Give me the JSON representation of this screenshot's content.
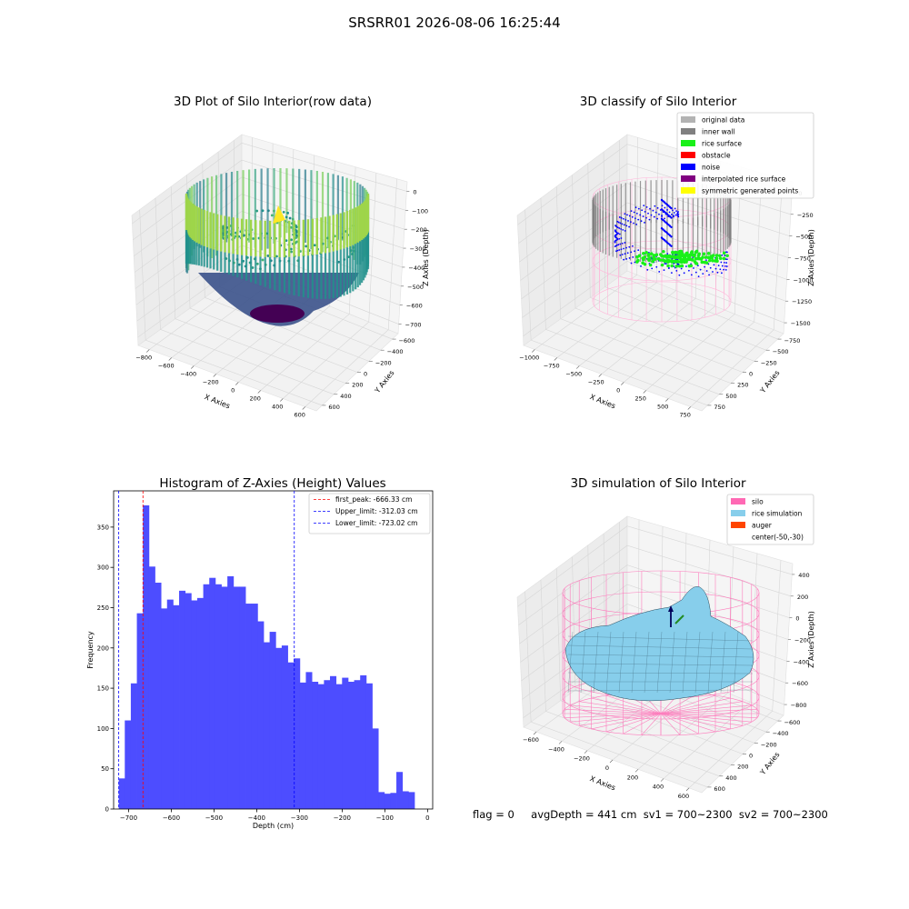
{
  "suptitle": "SRSRR01 2026-08-06 16:25:44",
  "panels": {
    "raw": {
      "title": "3D Plot of Silo Interior(row data)",
      "xlabel": "X Axies",
      "ylabel": "Y Axies",
      "zlabel": "Z Axies (Depth)",
      "xticks": [
        "−800",
        "−600",
        "−400",
        "−200",
        "0",
        "200",
        "400",
        "600"
      ],
      "yticks": [
        "600",
        "400",
        "200",
        "0",
        "−200",
        "−400",
        "−600"
      ],
      "zticks": [
        "0",
        "−100",
        "−200",
        "−300",
        "−400",
        "−500",
        "−600",
        "−700"
      ]
    },
    "classify": {
      "title": "3D classify of Silo Interior",
      "xlabel": "X Axies",
      "ylabel": "Y Axies",
      "zlabel": "Z Axies (Depth)",
      "xticks": [
        "−1000",
        "−750",
        "−500",
        "−250",
        "0",
        "250",
        "500",
        "750"
      ],
      "yticks": [
        "750",
        "500",
        "250",
        "0",
        "−250",
        "−500",
        "−750"
      ],
      "zticks": [
        "0",
        "−250",
        "−500",
        "−750",
        "−1000",
        "−1250",
        "−1500"
      ],
      "legend": [
        {
          "label": "original data",
          "color": "#b3b3b3"
        },
        {
          "label": "inner wall",
          "color": "#808080"
        },
        {
          "label": "rice surface",
          "color": "#19f019"
        },
        {
          "label": "obstacle",
          "color": "#ff0000"
        },
        {
          "label": "noise",
          "color": "#0000ff"
        },
        {
          "label": "interpolated rice surface",
          "color": "#800080"
        },
        {
          "label": "symmetric generated points",
          "color": "#ffff00"
        }
      ]
    },
    "simulation": {
      "title": "3D simulation of Silo Interior",
      "xlabel": "X Axies",
      "ylabel": "Y Axies",
      "zlabel": "Z Axies (Depth)",
      "xticks": [
        "−600",
        "−400",
        "−200",
        "0",
        "200",
        "400",
        "600"
      ],
      "yticks": [
        "600",
        "400",
        "200",
        "0",
        "−200",
        "−400",
        "−600"
      ],
      "zticks": [
        "400",
        "200",
        "0",
        "−200",
        "−400",
        "−600",
        "−800"
      ],
      "legend": [
        {
          "label": "silo",
          "color": "#ff69b4"
        },
        {
          "label": "rice simulation",
          "color": "#87ceeb"
        },
        {
          "label": "auger",
          "color": "#ff4500"
        },
        {
          "label": "center(-50,-30)",
          "color": ""
        }
      ]
    }
  },
  "footer": {
    "flag": "flag = 0",
    "stats": "avgDepth = 441 cm  sv1 = 700~2300  sv2 = 700~2300"
  },
  "chart_data": {
    "type": "bar",
    "title": "Histogram of Z-Axies (Height) Values",
    "xlabel": "Depth (cm)",
    "ylabel": "Frequency",
    "xlim": [
      -735,
      12
    ],
    "ylim": [
      0,
      395
    ],
    "xticks": [
      -700,
      -600,
      -500,
      -400,
      -300,
      -200,
      -100,
      0
    ],
    "xtick_labels": [
      "−700",
      "−600",
      "−500",
      "−400",
      "−300",
      "−200",
      "−100",
      "0"
    ],
    "yticks": [
      0,
      50,
      100,
      150,
      200,
      250,
      300,
      350
    ],
    "bar_color": "#4d4dff",
    "bins": {
      "start": -723,
      "width": 14.13,
      "values": [
        38,
        110,
        156,
        243,
        377,
        301,
        281,
        249,
        260,
        253,
        271,
        268,
        259,
        262,
        279,
        287,
        279,
        276,
        289,
        276,
        276,
        255,
        255,
        233,
        207,
        220,
        200,
        203,
        182,
        187,
        157,
        170,
        158,
        155,
        160,
        165,
        155,
        163,
        158,
        160,
        166,
        156,
        100,
        21,
        19,
        20,
        46,
        22,
        21
      ]
    },
    "vlines": [
      {
        "x": -666.33,
        "color": "#ff0000",
        "label": "first_peak: -666.33 cm"
      },
      {
        "x": -312.03,
        "color": "#0000ff",
        "label": "Upper_limit: -312.03 cm"
      },
      {
        "x": -723.02,
        "color": "#0000ff",
        "label": "Lower_limit: -723.02 cm"
      }
    ],
    "legend_position": "upper right"
  }
}
